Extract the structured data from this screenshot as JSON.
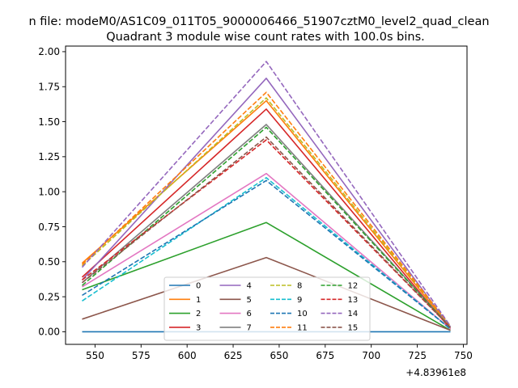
{
  "chart_data": {
    "type": "line",
    "suptitle": "n file: modeM0/AS1C09_011T05_9000006466_51907cztM0_level2_quad_clean",
    "title": "Quadrant 3 module wise count rates with 100.0s bins.",
    "xlabel": "",
    "ylabel": "",
    "x_offset_label": "+4.83961e8",
    "x": [
      543,
      643,
      743
    ],
    "xlim": [
      534,
      752
    ],
    "ylim": [
      -0.09,
      2.04
    ],
    "xticks": [
      550,
      575,
      600,
      625,
      650,
      675,
      700,
      725,
      750
    ],
    "yticks": [
      0.0,
      0.25,
      0.5,
      0.75,
      1.0,
      1.25,
      1.5,
      1.75,
      2.0
    ],
    "ytick_labels": [
      "0.00",
      "0.25",
      "0.50",
      "0.75",
      "1.00",
      "1.25",
      "1.50",
      "1.75",
      "2.00"
    ],
    "legend_position": "lower-center",
    "legend_columns": 4,
    "series": [
      {
        "name": "0",
        "values": [
          0.0,
          0.0,
          0.0
        ],
        "color": "#1f77b4",
        "style": "solid"
      },
      {
        "name": "1",
        "values": [
          0.49,
          1.65,
          0.03
        ],
        "color": "#ff7f0e",
        "style": "solid"
      },
      {
        "name": "2",
        "values": [
          0.3,
          0.78,
          0.01
        ],
        "color": "#2ca02c",
        "style": "solid"
      },
      {
        "name": "3",
        "values": [
          0.39,
          1.59,
          0.02
        ],
        "color": "#d62728",
        "style": "solid"
      },
      {
        "name": "4",
        "values": [
          0.37,
          1.81,
          0.03
        ],
        "color": "#9467bd",
        "style": "solid"
      },
      {
        "name": "5",
        "values": [
          0.09,
          0.53,
          0.01
        ],
        "color": "#8c564b",
        "style": "solid"
      },
      {
        "name": "6",
        "values": [
          0.32,
          1.13,
          0.02
        ],
        "color": "#e377c2",
        "style": "solid"
      },
      {
        "name": "7",
        "values": [
          0.35,
          1.48,
          0.03
        ],
        "color": "#7f7f7f",
        "style": "solid"
      },
      {
        "name": "8",
        "values": [
          0.47,
          1.67,
          0.04
        ],
        "color": "#bcbd22",
        "style": "dashed"
      },
      {
        "name": "9",
        "values": [
          0.22,
          1.1,
          0.02
        ],
        "color": "#17becf",
        "style": "dashed"
      },
      {
        "name": "10",
        "values": [
          0.26,
          1.08,
          0.02
        ],
        "color": "#1f77b4",
        "style": "dashed"
      },
      {
        "name": "11",
        "values": [
          0.48,
          1.71,
          0.04
        ],
        "color": "#ff7f0e",
        "style": "dashed"
      },
      {
        "name": "12",
        "values": [
          0.33,
          1.46,
          0.03
        ],
        "color": "#2ca02c",
        "style": "dashed"
      },
      {
        "name": "13",
        "values": [
          0.37,
          1.37,
          0.03
        ],
        "color": "#d62728",
        "style": "dashed"
      },
      {
        "name": "14",
        "values": [
          0.46,
          1.93,
          0.04
        ],
        "color": "#9467bd",
        "style": "dashed"
      },
      {
        "name": "15",
        "values": [
          0.35,
          1.39,
          0.03
        ],
        "color": "#8c564b",
        "style": "dashed"
      }
    ]
  }
}
